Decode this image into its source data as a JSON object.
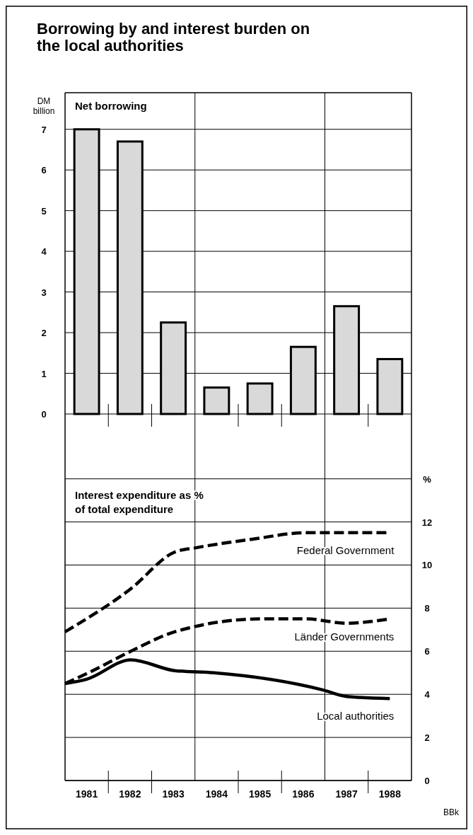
{
  "chart_data": [
    {
      "type": "other",
      "title": "Borrowing by and interest burden on the local authorities",
      "annotations": [
        "BBk"
      ]
    },
    {
      "type": "bar",
      "subtitle": "Net borrowing",
      "ylabel": "DM billion",
      "x": [
        1981,
        1982,
        1983,
        1984,
        1985,
        1986,
        1987,
        1988
      ],
      "values": [
        7.0,
        6.7,
        2.25,
        0.65,
        0.75,
        1.65,
        2.65,
        1.35
      ],
      "color": "#d9d9d9",
      "xlim": [
        1980.5,
        1988.5
      ],
      "ylim": [
        -0.8,
        7.9
      ],
      "yticks": [
        0,
        1,
        2,
        3,
        4,
        5,
        6,
        7
      ],
      "tick_labels": "y",
      "grid": "y",
      "ref_lines": [
        {
          "axis": "x",
          "value": 1983.5,
          "label": null
        },
        {
          "axis": "x",
          "value": 1986.5,
          "label": null
        }
      ]
    },
    {
      "type": "line",
      "subtitle": "Interest expenditure as % of total expenditure",
      "ylabel": "%",
      "xlim": [
        1980.5,
        1988.5
      ],
      "ylim": [
        0,
        15.5
      ],
      "yticks": [
        0,
        2,
        4,
        6,
        8,
        10,
        12,
        {
          "value": 14,
          "label": null
        }
      ],
      "xticks": [
        1981,
        1982,
        1983,
        1984,
        1985,
        1986,
        1987,
        1988
      ],
      "grid": "y",
      "ref_lines": [
        {
          "axis": "x",
          "value": 1983.5,
          "label": null
        },
        {
          "axis": "x",
          "value": 1986.5,
          "label": null
        }
      ],
      "legend": false,
      "marker": "none",
      "series": [
        {
          "name": "Federal Government",
          "color": "#000000",
          "line_style": "dashed",
          "x": [
            1980.5,
            1982.02,
            1983.03,
            1983.52,
            1984.83,
            1986.07,
            1988
          ],
          "values": [
            6.9,
            8.9,
            10.6,
            10.8,
            11.2,
            11.5,
            11.5
          ]
        },
        {
          "name": "Länder Governments",
          "color": "#000000",
          "line_style": "dashed",
          "x": [
            1980.5,
            1981.04,
            1982.02,
            1983.03,
            1985.04,
            1986.07,
            1987.0,
            1988
          ],
          "values": [
            4.5,
            5.0,
            6.0,
            6.9,
            7.5,
            7.5,
            7.3,
            7.5
          ]
        },
        {
          "name": "Local authorities",
          "color": "#000000",
          "line_style": "solid",
          "x": [
            1980.5,
            1981.0,
            1982.02,
            1983.03,
            1983.94,
            1986.46,
            1987.0,
            1988
          ],
          "values": [
            4.5,
            4.7,
            5.6,
            5.1,
            5.0,
            4.2,
            3.9,
            3.8
          ]
        }
      ]
    }
  ]
}
